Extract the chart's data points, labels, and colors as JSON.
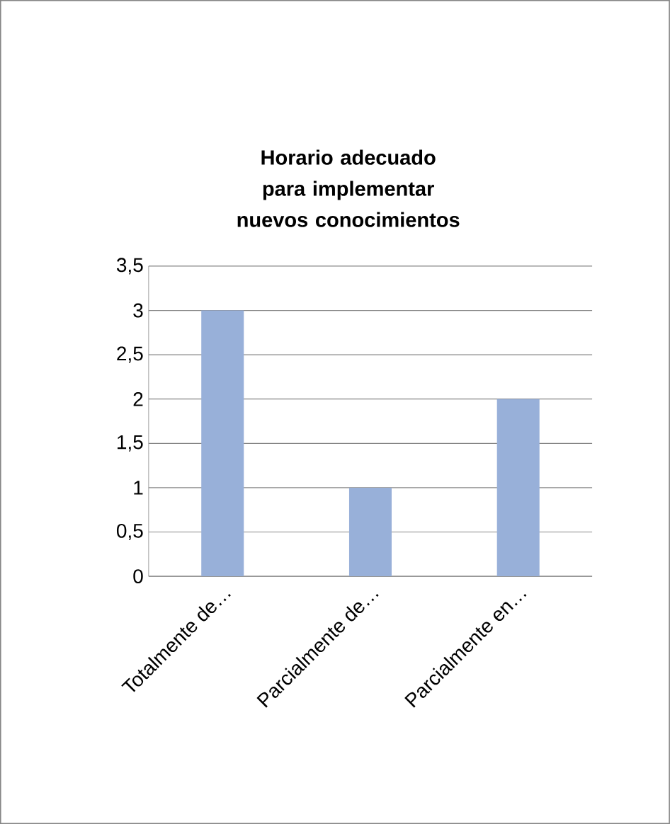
{
  "chart_data": {
    "type": "bar",
    "title": "Horario adecuado para implementar nuevos conocimientos",
    "categories": [
      "Totalmente de…",
      "Parcialmente de…",
      "Parcialmente en…"
    ],
    "values": [
      3,
      1,
      2
    ],
    "color": "#98b0d9",
    "ylim": [
      0,
      3.5
    ],
    "yticks": [
      0,
      {
        "value": 0.5,
        "label": "0,5"
      },
      1,
      {
        "value": 1.5,
        "label": "1,5"
      },
      2,
      {
        "value": 2.5,
        "label": "2,5"
      },
      3,
      {
        "value": 3.5,
        "label": "3,5"
      }
    ],
    "grid": "y"
  }
}
